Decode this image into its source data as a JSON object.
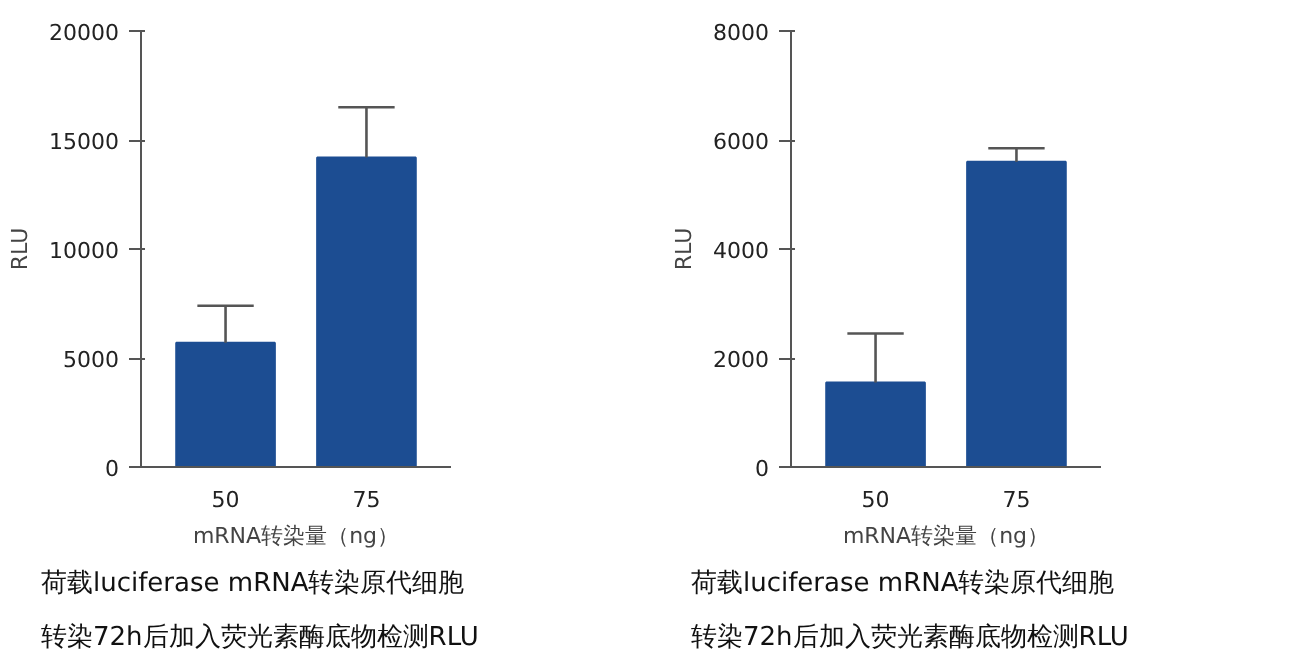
{
  "chart_data": [
    {
      "type": "bar",
      "categories": [
        "50",
        "75"
      ],
      "values": [
        5700,
        14200
      ],
      "errors": [
        [
          5700,
          7400
        ],
        [
          14200,
          16500
        ]
      ],
      "color": "#1c4d92",
      "ylim": [
        0,
        20000
      ],
      "yticks": [
        0,
        5000,
        10000,
        15000,
        20000
      ],
      "xlabel": "mRNA转染量（ng）",
      "ylabel": "RLU",
      "grid": false,
      "annotations": [
        "荷载luciferase mRNA转染原代细胞",
        "转染72h后加入荧光素酶底物检测RLU"
      ]
    },
    {
      "type": "bar",
      "categories": [
        "50",
        "75"
      ],
      "values": [
        1550,
        5600
      ],
      "errors": [
        [
          1550,
          2450
        ],
        [
          5600,
          5850
        ]
      ],
      "color": "#1c4d92",
      "ylim": [
        0,
        8000
      ],
      "yticks": [
        0,
        2000,
        4000,
        6000,
        8000
      ],
      "xlabel": "mRNA转染量（ng）",
      "ylabel": "RLU",
      "grid": false,
      "annotations": [
        "荷载luciferase mRNA转染原代细胞",
        "转染72h后加入荧光素酶底物检测RLU"
      ]
    }
  ]
}
